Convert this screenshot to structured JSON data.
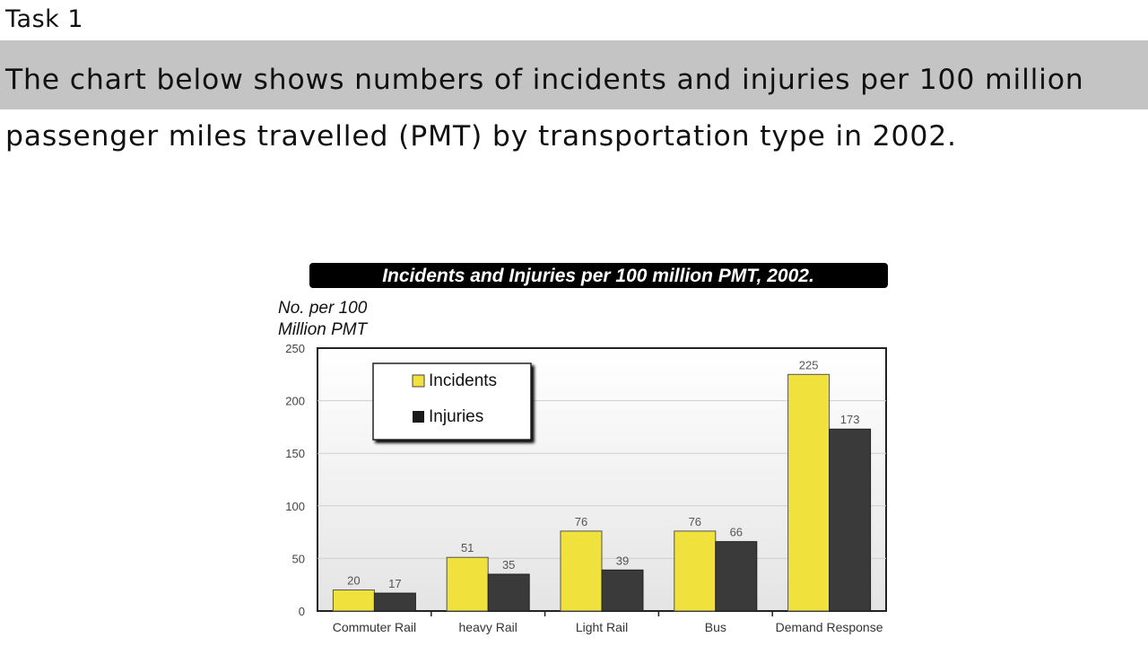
{
  "page": {
    "task_label": "Task 1",
    "prompt": "The chart below shows numbers of incidents and injuries per 100 million passenger miles travelled (PMT) by transportation type in 2002."
  },
  "colors": {
    "incidents": "#f0e13c",
    "injuries": "#3a3a3a",
    "title_bg": "#000000",
    "prompt_band": "#c4c4c4"
  },
  "chart_data": {
    "type": "bar",
    "title": "Incidents and Injuries per 100 million PMT, 2002.",
    "ylabel_lines": [
      "No. per 100",
      "Million PMT"
    ],
    "xlabel": "",
    "categories": [
      "Commuter Rail",
      "heavy Rail",
      "Light Rail",
      "Bus",
      "Demand Response"
    ],
    "series": [
      {
        "name": "Incidents",
        "values": [
          20,
          51,
          76,
          76,
          225
        ]
      },
      {
        "name": "Injuries",
        "values": [
          17,
          35,
          39,
          66,
          173
        ]
      }
    ],
    "ylim": [
      0,
      250
    ],
    "yticks": [
      0,
      50,
      100,
      150,
      200,
      250
    ],
    "grid": true,
    "legend": "top-left",
    "data_labels": true
  }
}
